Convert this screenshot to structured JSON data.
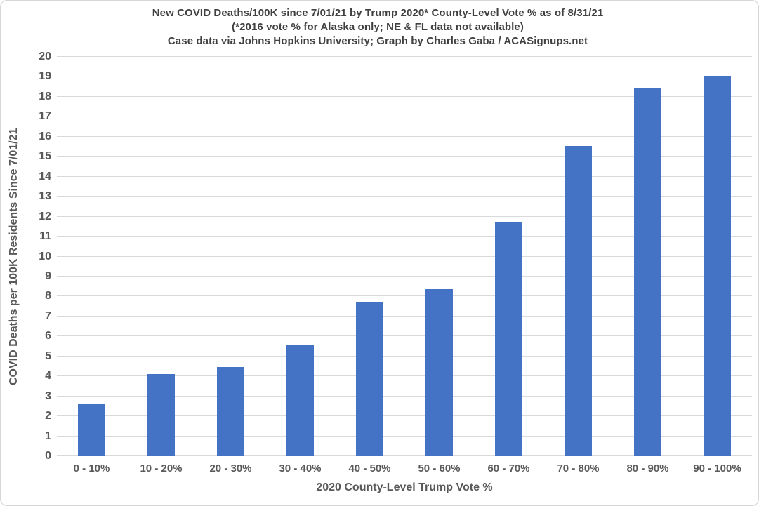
{
  "title": {
    "line1": "New COVID Deaths/100K since 7/01/21 by Trump 2020* County-Level Vote % as of 8/31/21",
    "line2": "(*2016 vote % for Alaska only; NE & FL data not available)",
    "line3": "Case data via Johns Hopkins University; Graph by Charles Gaba / ACASignups.net"
  },
  "chart_data": {
    "type": "bar",
    "title": "New COVID Deaths/100K since 7/01/21 by Trump 2020* County-Level Vote % as of 8/31/21",
    "subtitle": "(*2016 vote % for Alaska only; NE & FL data not available)",
    "credit": "Case data via Johns Hopkins University; Graph by Charles Gaba / ACASignups.net",
    "categories": [
      "0 - 10%",
      "10 - 20%",
      "20 - 30%",
      "30 - 40%",
      "40 - 50%",
      "50 - 60%",
      "60 - 70%",
      "70 - 80%",
      "80 - 90%",
      "90 - 100%"
    ],
    "values": [
      2.65,
      4.1,
      4.45,
      5.55,
      7.7,
      8.35,
      11.7,
      15.55,
      18.45,
      19.0
    ],
    "xlabel": "2020 County-Level Trump Vote %",
    "ylabel": "COVID Deaths per 100K Residents Since 7/01/21",
    "ylim": [
      0,
      20
    ],
    "ytick_step": 1,
    "grid": true,
    "legend": false
  },
  "colors": {
    "bar": "#4472C4",
    "gridline": "#D9D9D9",
    "title_text": "#404040",
    "axis_text": "#595959",
    "frame_border": "#D6D6D6",
    "background": "#FFFFFF"
  }
}
